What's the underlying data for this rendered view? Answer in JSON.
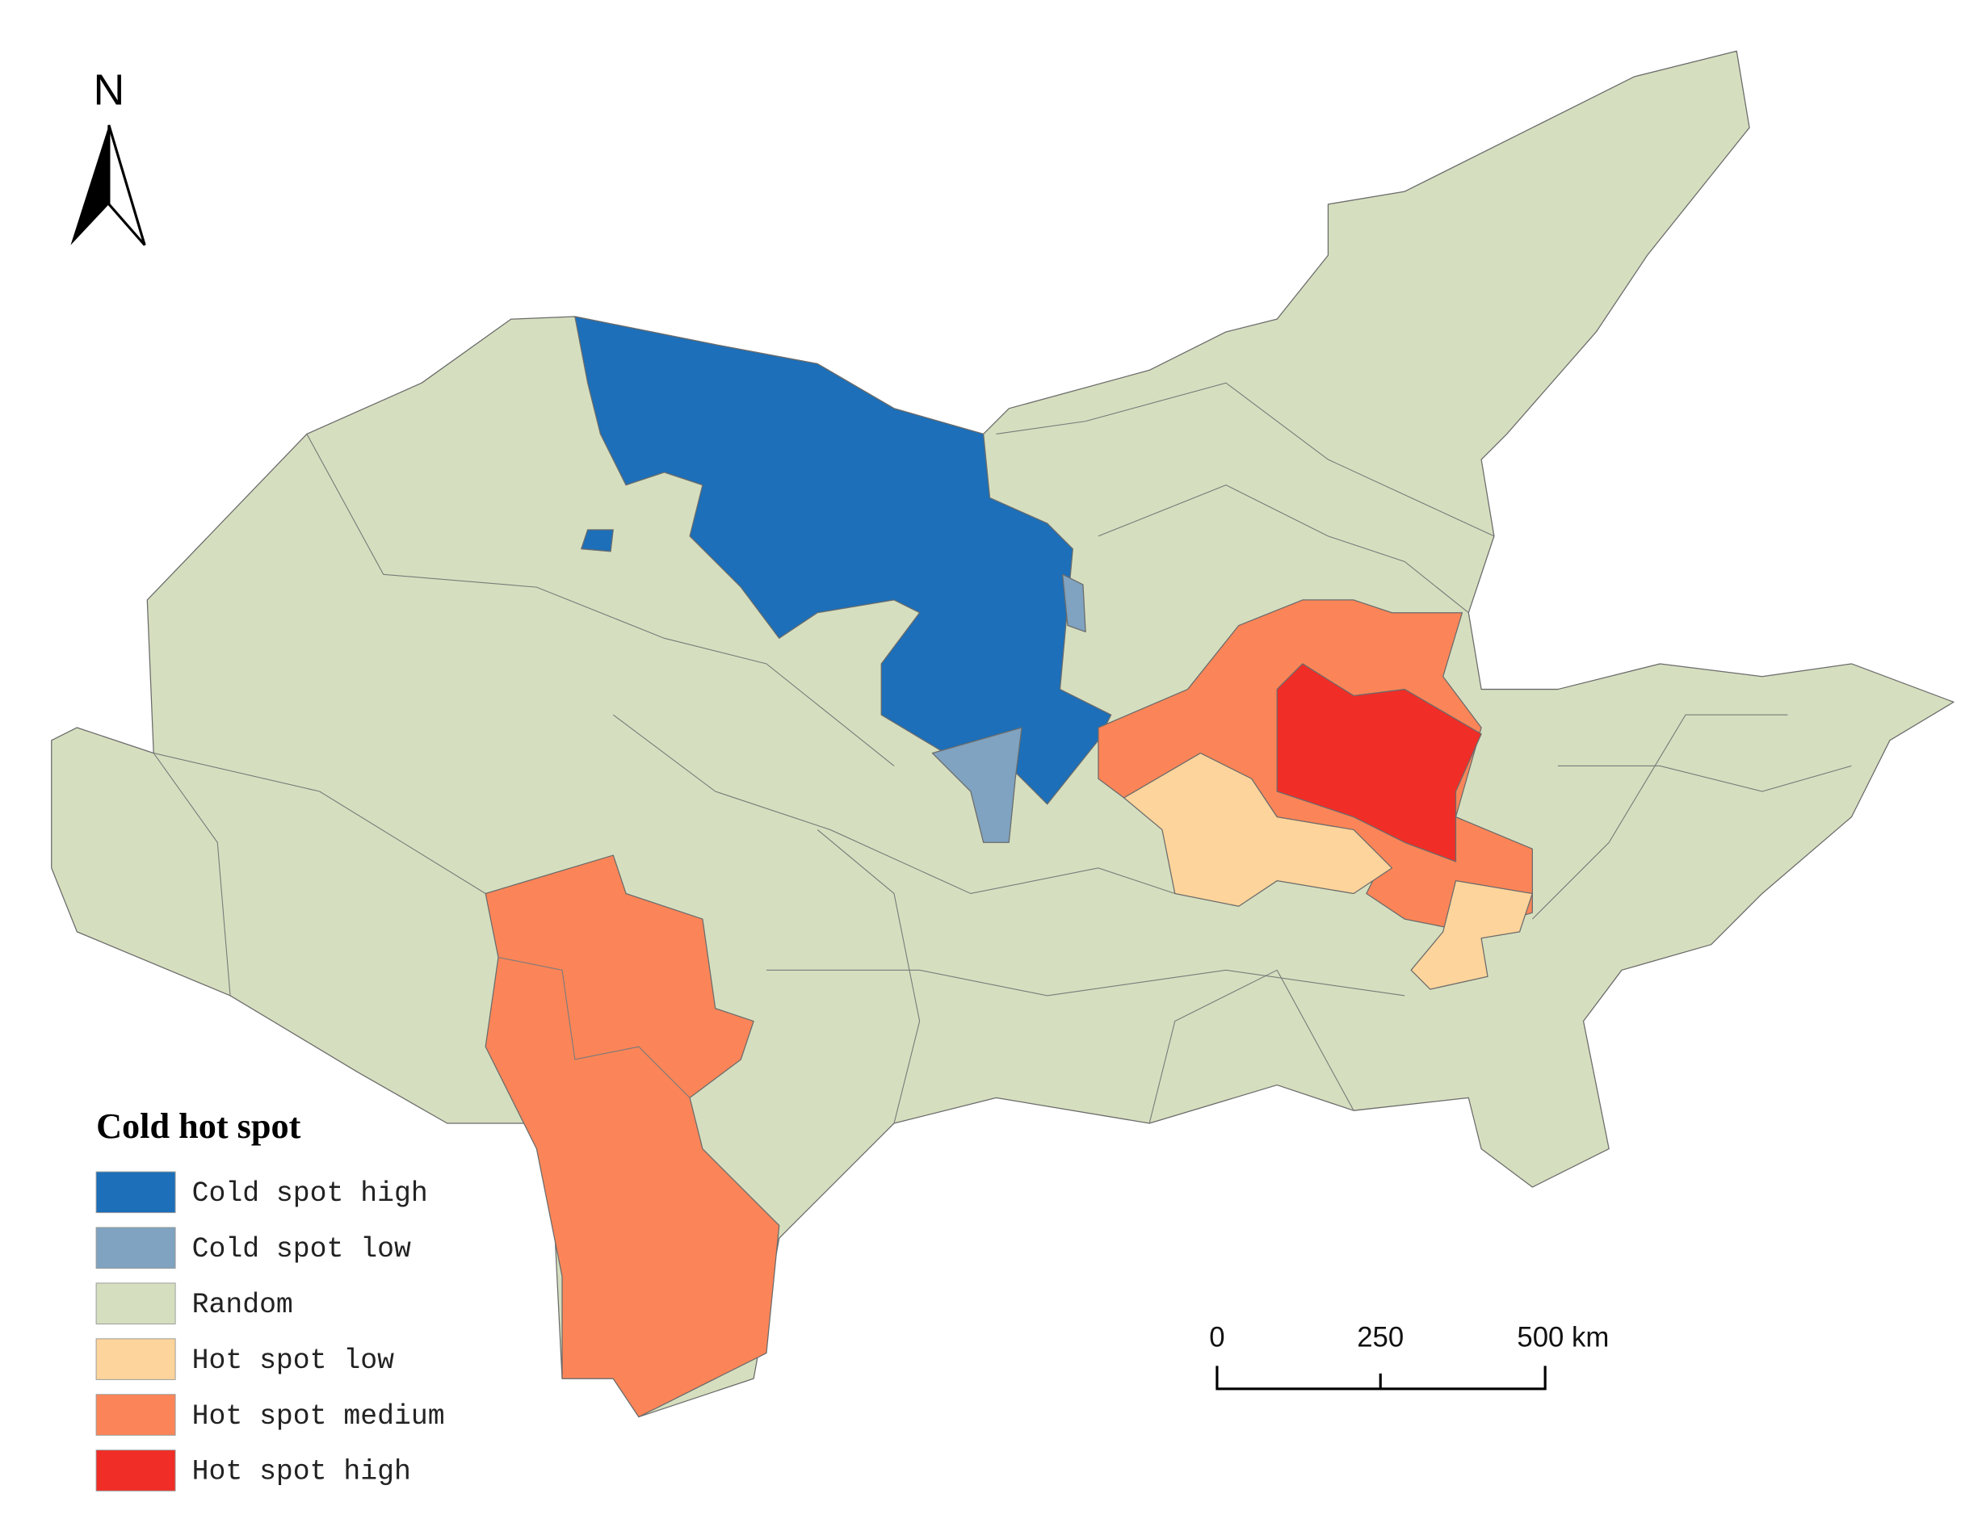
{
  "north": "N",
  "legend": {
    "title": "Cold hot spot",
    "items": [
      {
        "label": "Cold spot high",
        "color": "#1c6fb8"
      },
      {
        "label": "Cold spot low",
        "color": "#7fa3c0"
      },
      {
        "label": "Random",
        "color": "#d5dfbf"
      },
      {
        "label": "Hot spot low",
        "color": "#fdd49b"
      },
      {
        "label": "Hot spot medium",
        "color": "#fb8558"
      },
      {
        "label": "Hot spot high",
        "color": "#f02d27"
      }
    ]
  },
  "scale_bar": {
    "labels": [
      "0",
      "250",
      "500 km"
    ]
  }
}
